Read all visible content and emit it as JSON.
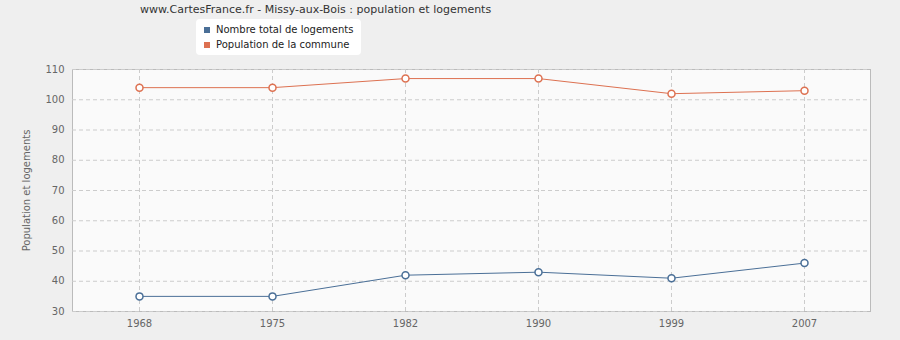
{
  "chart_data": {
    "type": "line",
    "title": "www.CartesFrance.fr - Missy-aux-Bois : population et logements",
    "y_label": "Population et logements",
    "categories": [
      "1968",
      "1975",
      "1982",
      "1990",
      "1999",
      "2007"
    ],
    "series": [
      {
        "name": "Nombre total de logements",
        "color": "#4a6f97",
        "values": [
          35,
          35,
          42,
          43,
          41,
          46
        ]
      },
      {
        "name": "Population de la commune",
        "color": "#dd7151",
        "values": [
          104,
          104,
          107,
          107,
          102,
          103
        ]
      }
    ],
    "ylim": [
      30,
      110
    ],
    "yticks": [
      30,
      40,
      50,
      60,
      70,
      80,
      90,
      100,
      110
    ],
    "grid": true,
    "marker": "circle"
  }
}
